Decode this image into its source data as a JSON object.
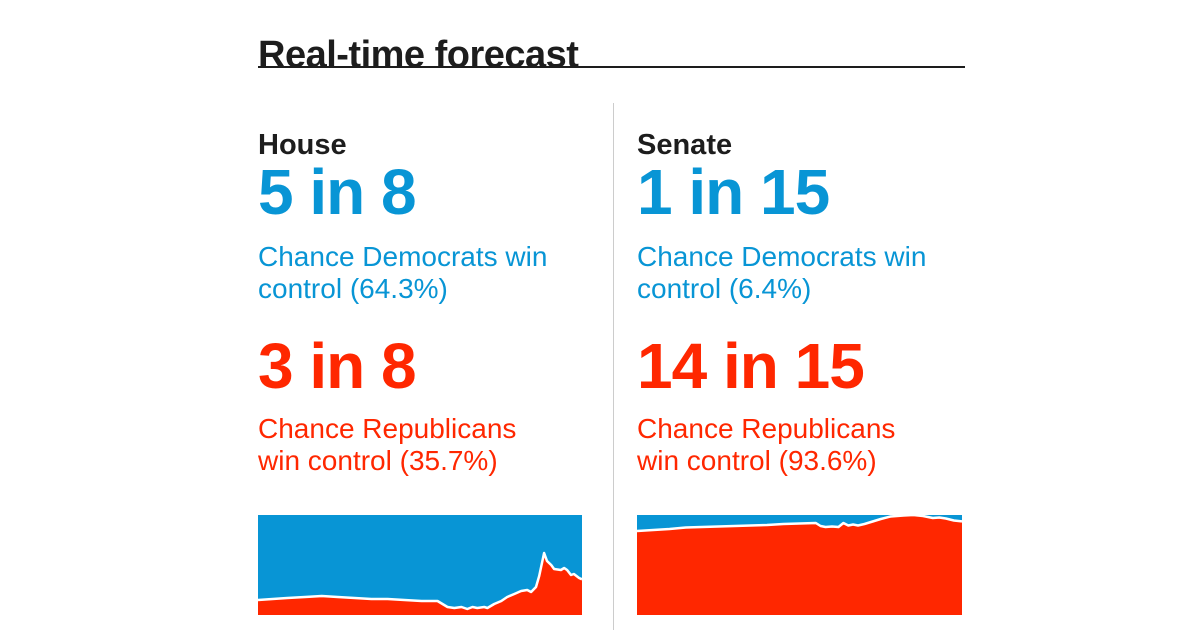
{
  "card": {
    "title": "Real-time forecast"
  },
  "colors": {
    "text_dark": "#1d1d1d",
    "democrat_blue": "#0895d5",
    "republican_red": "#ff2700",
    "divider_gray": "#cccccc",
    "chart_boundary_white": "#ffffff",
    "background": "#ffffff"
  },
  "columns": [
    {
      "id": "house",
      "heading": "House",
      "democrat": {
        "odds": "5 in 8",
        "caption_lines": [
          "Chance Democrats win",
          "control (64.3%)"
        ]
      },
      "republican": {
        "odds": "3 in 8",
        "caption_lines": [
          "Chance Republicans",
          "win control (35.7%)"
        ]
      }
    },
    {
      "id": "senate",
      "heading": "Senate",
      "democrat": {
        "odds": "1 in 15",
        "caption_lines": [
          "Chance Democrats win",
          "control (6.4%)"
        ]
      },
      "republican": {
        "odds": "14 in 15",
        "caption_lines": [
          "Chance Republicans",
          "win control (93.6%)"
        ]
      }
    }
  ],
  "chart_data": [
    {
      "id": "house",
      "type": "area",
      "title": "House chance of winning control over time (stacked area, Republicans bottom, Democrats top)",
      "stacked_to_pct": 100,
      "ylim": [
        0,
        100
      ],
      "axes_visible": false,
      "grid": false,
      "legend": "none",
      "boundary_line_color": "#ffffff",
      "series": [
        {
          "party": "republican",
          "name": "Chance Republicans win control",
          "color": "#ff2700",
          "x_fraction": [
            0,
            0.09,
            0.145,
            0.197,
            0.246,
            0.298,
            0.35,
            0.4,
            0.452,
            0.505,
            0.554,
            0.585,
            0.606,
            0.628,
            0.646,
            0.662,
            0.677,
            0.698,
            0.708,
            0.729,
            0.751,
            0.769,
            0.791,
            0.812,
            0.831,
            0.843,
            0.858,
            0.868,
            0.883,
            0.892,
            0.905,
            0.914,
            0.935,
            0.945,
            0.954,
            0.966,
            0.975,
            0.991,
            1
          ],
          "pct": [
            15,
            17,
            18,
            19,
            18,
            17,
            16,
            16,
            15,
            14,
            14,
            8,
            7,
            8,
            6,
            8,
            7,
            8,
            7,
            11,
            14,
            18,
            21,
            24,
            25,
            23,
            28,
            39,
            62,
            54,
            50,
            46,
            45,
            47,
            45,
            40,
            41,
            37,
            35.7
          ]
        },
        {
          "party": "democratic",
          "name": "Chance Democrats win control",
          "color": "#0895d5",
          "x_fraction": [
            0,
            0.09,
            0.145,
            0.197,
            0.246,
            0.298,
            0.35,
            0.4,
            0.452,
            0.505,
            0.554,
            0.585,
            0.606,
            0.628,
            0.646,
            0.662,
            0.677,
            0.698,
            0.708,
            0.729,
            0.751,
            0.769,
            0.791,
            0.812,
            0.831,
            0.843,
            0.858,
            0.868,
            0.883,
            0.892,
            0.905,
            0.914,
            0.935,
            0.945,
            0.954,
            0.966,
            0.975,
            0.991,
            1
          ],
          "pct": [
            85,
            83,
            82,
            81,
            82,
            83,
            84,
            84,
            85,
            86,
            86,
            92,
            93,
            92,
            94,
            92,
            93,
            92,
            93,
            89,
            86,
            82,
            79,
            76,
            75,
            77,
            72,
            61,
            38,
            46,
            50,
            54,
            55,
            53,
            55,
            60,
            59,
            63,
            64.3
          ]
        }
      ]
    },
    {
      "id": "senate",
      "type": "area",
      "title": "Senate chance of winning control over time (stacked area, Republicans bottom, Democrats top)",
      "stacked_to_pct": 100,
      "ylim": [
        0,
        100
      ],
      "axes_visible": false,
      "grid": false,
      "legend": "none",
      "boundary_line_color": "#ffffff",
      "series": [
        {
          "party": "republican",
          "name": "Chance Republicans win control",
          "color": "#ff2700",
          "x_fraction": [
            0,
            0.05,
            0.1,
            0.15,
            0.2,
            0.25,
            0.3,
            0.35,
            0.4,
            0.45,
            0.5,
            0.55,
            0.565,
            0.58,
            0.6,
            0.62,
            0.635,
            0.65,
            0.665,
            0.68,
            0.7,
            0.72,
            0.75,
            0.78,
            0.82,
            0.85,
            0.88,
            0.91,
            0.93,
            0.95,
            0.975,
            1
          ],
          "pct": [
            84,
            85,
            86,
            87.5,
            88,
            88.5,
            89,
            89.5,
            90,
            91,
            91.5,
            92,
            89,
            88,
            88.5,
            88,
            92,
            89.5,
            90.5,
            89.5,
            91,
            93,
            96,
            98.5,
            99.5,
            100,
            99,
            97,
            97.5,
            96.5,
            94.5,
            93.6
          ]
        },
        {
          "party": "democratic",
          "name": "Chance Democrats win control",
          "color": "#0895d5",
          "x_fraction": [
            0,
            0.05,
            0.1,
            0.15,
            0.2,
            0.25,
            0.3,
            0.35,
            0.4,
            0.45,
            0.5,
            0.55,
            0.565,
            0.58,
            0.6,
            0.62,
            0.635,
            0.65,
            0.665,
            0.68,
            0.7,
            0.72,
            0.75,
            0.78,
            0.82,
            0.85,
            0.88,
            0.91,
            0.93,
            0.95,
            0.975,
            1
          ],
          "pct": [
            16,
            15,
            14,
            12.5,
            12,
            11.5,
            11,
            10.5,
            10,
            9,
            8.5,
            8,
            11,
            12,
            11.5,
            12,
            8,
            10.5,
            9.5,
            10.5,
            9,
            7,
            4,
            1.5,
            0.5,
            0,
            1,
            3,
            2.5,
            3.5,
            5.5,
            6.4
          ]
        }
      ]
    }
  ]
}
